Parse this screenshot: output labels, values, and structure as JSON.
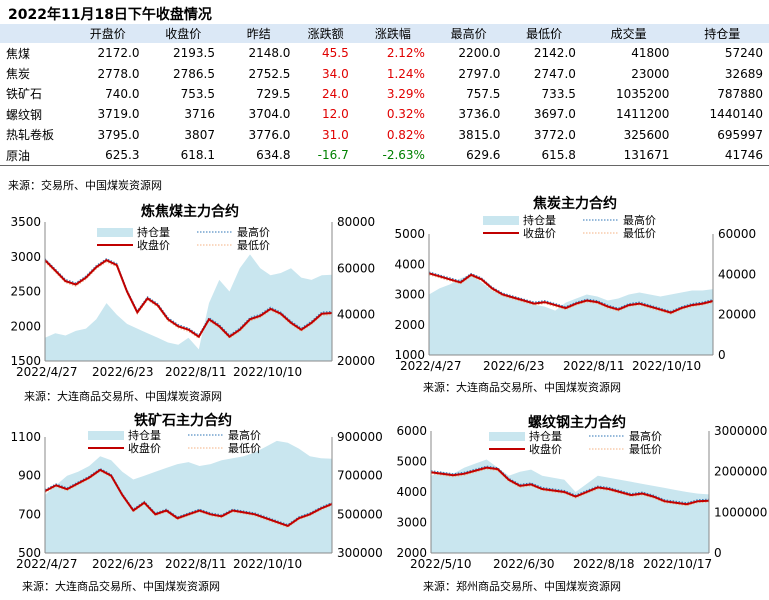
{
  "page": {
    "title": "2022年11月18日下午收盘情况"
  },
  "table": {
    "columns": [
      "",
      "开盘价",
      "收盘价",
      "昨结",
      "涨跌额",
      "涨跌幅",
      "最高价",
      "最低价",
      "成交量",
      "持仓量"
    ],
    "rows": [
      {
        "name": "焦煤",
        "open": "2172.0",
        "close": "2193.5",
        "prev": "2148.0",
        "chg": "45.5",
        "pct": "2.12%",
        "high": "2200.0",
        "low": "2142.0",
        "vol": "41800",
        "oi": "57240",
        "dir": "up"
      },
      {
        "name": "焦炭",
        "open": "2778.0",
        "close": "2786.5",
        "prev": "2752.5",
        "chg": "34.0",
        "pct": "1.24%",
        "high": "2797.0",
        "low": "2747.0",
        "vol": "23000",
        "oi": "32689",
        "dir": "up"
      },
      {
        "name": "铁矿石",
        "open": "740.0",
        "close": "753.5",
        "prev": "729.5",
        "chg": "24.0",
        "pct": "3.29%",
        "high": "757.5",
        "low": "733.5",
        "vol": "1035200",
        "oi": "787880",
        "dir": "up"
      },
      {
        "name": "螺纹钢",
        "open": "3719.0",
        "close": "3716",
        "prev": "3704.0",
        "chg": "12.0",
        "pct": "0.32%",
        "high": "3736.0",
        "low": "3697.0",
        "vol": "1411200",
        "oi": "1440140",
        "dir": "up"
      },
      {
        "name": "热轧卷板",
        "open": "3795.0",
        "close": "3807",
        "prev": "3776.0",
        "chg": "31.0",
        "pct": "0.82%",
        "high": "3815.0",
        "low": "3772.0",
        "vol": "325600",
        "oi": "695997",
        "dir": "up"
      },
      {
        "name": "原油",
        "open": "625.3",
        "close": "618.1",
        "prev": "634.8",
        "chg": "-16.7",
        "pct": "-2.63%",
        "high": "629.6",
        "low": "615.8",
        "vol": "131671",
        "oi": "41746",
        "dir": "down"
      }
    ],
    "source": "来源：交易所、中国煤炭资源网"
  },
  "colors": {
    "oi_fill": "#c9e6ef",
    "close_line": "#c00000",
    "high_line": "#2e75b6",
    "low_line": "#f4b183",
    "up": "#e00000",
    "down": "#008000",
    "header_bg": "#dbe8f6"
  },
  "chart_data": [
    {
      "type": "line",
      "title": "炼焦煤主力合约",
      "source": "来源：大连商品交易所、中国煤炭资源网",
      "x_ticks": [
        "2022/4/27",
        "2022/6/23",
        "2022/8/11",
        "2022/10/10"
      ],
      "ylim": [
        1500,
        3500
      ],
      "y_ticks": [
        "1500",
        "2000",
        "2500",
        "3000",
        "3500"
      ],
      "y2lim": [
        20000,
        80000
      ],
      "y2_ticks": [
        "20000",
        "40000",
        "60000",
        "80000"
      ],
      "legend": [
        "持仓量",
        "最高价",
        "收盘价",
        "最低价"
      ],
      "close": [
        2950,
        2800,
        2650,
        2600,
        2700,
        2850,
        2950,
        2880,
        2500,
        2200,
        2400,
        2300,
        2100,
        2000,
        1950,
        1850,
        2100,
        2000,
        1850,
        1950,
        2100,
        2150,
        2250,
        2180,
        2050,
        1950,
        2050,
        2180,
        2190
      ],
      "open_interest": [
        30000,
        32000,
        31000,
        33000,
        34000,
        38000,
        45000,
        40000,
        36000,
        34000,
        32000,
        30000,
        28000,
        27000,
        30000,
        25000,
        45000,
        55000,
        50000,
        60000,
        66000,
        60000,
        57000,
        58000,
        60000,
        56000,
        55000,
        57000,
        57240
      ]
    },
    {
      "type": "line",
      "title": "焦炭主力合约",
      "source": "来源：大连商品交易所、中国煤炭资源网",
      "x_ticks": [
        "2022/4/27",
        "2022/6/23",
        "2022/8/11",
        "2022/10/10"
      ],
      "ylim": [
        1000,
        5000
      ],
      "y_ticks": [
        "1000",
        "2000",
        "3000",
        "4000",
        "5000"
      ],
      "y2lim": [
        0,
        60000
      ],
      "y2_ticks": [
        "0",
        "20000",
        "40000",
        "60000"
      ],
      "legend": [
        "持仓量",
        "最高价",
        "收盘价",
        "最低价"
      ],
      "close": [
        3700,
        3600,
        3500,
        3400,
        3650,
        3500,
        3200,
        3000,
        2900,
        2800,
        2700,
        2750,
        2650,
        2550,
        2700,
        2800,
        2750,
        2600,
        2500,
        2650,
        2700,
        2600,
        2500,
        2400,
        2550,
        2650,
        2700,
        2786
      ],
      "open_interest": [
        30000,
        33000,
        35000,
        38000,
        40000,
        36000,
        32000,
        30000,
        29000,
        27000,
        25000,
        24000,
        22000,
        26000,
        28000,
        30000,
        29000,
        27000,
        28000,
        30000,
        31000,
        30000,
        29000,
        30000,
        31000,
        32000,
        32000,
        32689
      ]
    },
    {
      "type": "line",
      "title": "铁矿石主力合约",
      "source": "来源：大连商品交易所、中国煤炭资源网",
      "x_ticks": [
        "2022/4/27",
        "2022/6/23",
        "2022/8/11",
        "2022/10/10"
      ],
      "ylim": [
        500,
        1100
      ],
      "y_ticks": [
        "500",
        "700",
        "900",
        "1100"
      ],
      "y2lim": [
        300000,
        900000
      ],
      "y2_ticks": [
        "300000",
        "500000",
        "700000",
        "900000"
      ],
      "legend": [
        "持仓量",
        "最高价",
        "收盘价",
        "最低价"
      ],
      "close": [
        820,
        850,
        830,
        860,
        890,
        930,
        900,
        800,
        720,
        760,
        700,
        720,
        680,
        700,
        720,
        700,
        690,
        720,
        710,
        700,
        680,
        660,
        640,
        680,
        700,
        730,
        754
      ],
      "open_interest": [
        600000,
        650000,
        700000,
        720000,
        750000,
        800000,
        780000,
        720000,
        680000,
        700000,
        720000,
        740000,
        760000,
        770000,
        750000,
        760000,
        780000,
        790000,
        800000,
        820000,
        850000,
        880000,
        870000,
        840000,
        800000,
        790000,
        787880
      ]
    },
    {
      "type": "line",
      "title": "螺纹钢主力合约",
      "source": "来源：郑州商品交易所、中国煤炭资源网",
      "x_ticks": [
        "2022/5/10",
        "2022/6/30",
        "2022/8/18",
        "2022/10/17"
      ],
      "ylim": [
        2000,
        6000
      ],
      "y_ticks": [
        "2000",
        "3000",
        "4000",
        "5000",
        "6000"
      ],
      "y2lim": [
        0,
        3000000
      ],
      "y2_ticks": [
        "0",
        "1000000",
        "2000000",
        "3000000"
      ],
      "legend": [
        "持仓量",
        "最高价",
        "收盘价",
        "最低价"
      ],
      "close": [
        4650,
        4600,
        4550,
        4600,
        4700,
        4800,
        4750,
        4400,
        4200,
        4250,
        4100,
        4050,
        4000,
        3850,
        4000,
        4150,
        4100,
        4000,
        3900,
        3950,
        3850,
        3700,
        3650,
        3600,
        3700,
        3716
      ],
      "open_interest": [
        1900000,
        2000000,
        1950000,
        2100000,
        2200000,
        2300000,
        2100000,
        1900000,
        2000000,
        2050000,
        1900000,
        1850000,
        1800000,
        1500000,
        1700000,
        1900000,
        1850000,
        1800000,
        1750000,
        1700000,
        1650000,
        1600000,
        1550000,
        1500000,
        1460000,
        1440140
      ]
    }
  ]
}
